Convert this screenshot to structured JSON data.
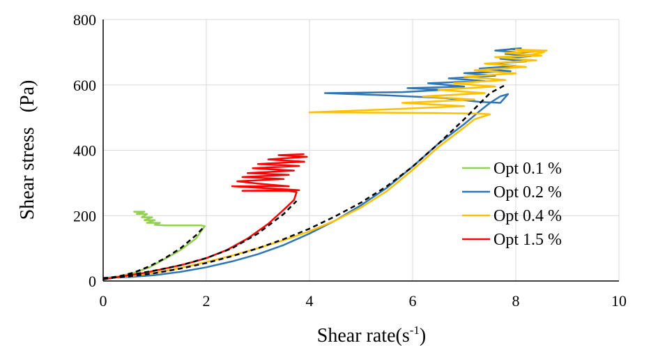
{
  "chart_data": {
    "type": "line",
    "xlabel": "Shear rate(s",
    "xlabel_sup": "-1",
    "xlabel_close": ")",
    "ylabel": "Shear stress   (Pa)",
    "xlim": [
      0,
      10
    ],
    "ylim": [
      0,
      800
    ],
    "xticks": [
      0,
      2,
      4,
      6,
      8,
      10
    ],
    "yticks": [
      0,
      200,
      400,
      600,
      800
    ],
    "grid": true,
    "legend_position": "right",
    "series": [
      {
        "name": "Opt 0.1 %",
        "color": "#92D050",
        "x": [
          0.0,
          0.3,
          0.6,
          0.9,
          1.2,
          1.5,
          1.8,
          1.97,
          1.9,
          1.6,
          1.2,
          1.0,
          1.1,
          0.85,
          1.0,
          0.8,
          0.95,
          0.75,
          0.85,
          0.65,
          0.8,
          0.6,
          0.75
        ],
        "y": [
          8,
          14,
          25,
          42,
          68,
          95,
          130,
          168,
          170,
          170,
          170,
          172,
          178,
          178,
          186,
          186,
          195,
          195,
          205,
          205,
          212,
          212,
          210
        ]
      },
      {
        "name": "Opt 0.2 %",
        "color": "#2E75B6",
        "x": [
          0.0,
          0.5,
          1.0,
          1.5,
          2.0,
          2.5,
          3.0,
          3.5,
          4.0,
          4.5,
          5.0,
          5.5,
          6.0,
          6.5,
          7.0,
          7.3,
          7.5,
          7.7,
          7.85,
          7.7,
          7.3,
          6.6,
          5.5,
          4.3,
          5.8,
          6.6,
          5.9,
          7.0,
          6.3,
          7.4,
          6.7,
          7.6,
          7.0,
          7.9,
          7.3,
          8.0,
          7.5,
          8.2,
          7.7,
          8.3,
          7.8,
          8.35,
          7.9,
          8.1,
          7.6,
          8.0
        ],
        "y": [
          10,
          12,
          18,
          28,
          42,
          60,
          82,
          110,
          145,
          185,
          232,
          285,
          350,
          420,
          480,
          520,
          545,
          565,
          572,
          545,
          548,
          560,
          568,
          575,
          578,
          585,
          590,
          595,
          605,
          612,
          620,
          628,
          636,
          642,
          650,
          658,
          665,
          672,
          680,
          688,
          695,
          702,
          710,
          712,
          705,
          700
        ]
      },
      {
        "name": "Opt 0.4 %",
        "color": "#FFC000",
        "x": [
          0.0,
          0.5,
          1.0,
          1.5,
          2.0,
          2.5,
          3.0,
          3.5,
          4.0,
          4.5,
          5.0,
          5.5,
          6.0,
          6.5,
          7.0,
          7.2,
          7.5,
          7.3,
          6.5,
          5.5,
          4.0,
          5.5,
          7.0,
          5.8,
          7.2,
          6.2,
          7.4,
          6.5,
          7.6,
          6.8,
          7.8,
          7.0,
          8.0,
          7.2,
          8.2,
          7.4,
          8.4,
          7.6,
          8.5,
          7.8,
          8.6,
          8.0,
          8.55,
          8.2
        ],
        "y": [
          8,
          14,
          25,
          40,
          58,
          78,
          100,
          125,
          152,
          185,
          225,
          275,
          340,
          410,
          470,
          495,
          510,
          512,
          514,
          515,
          516,
          525,
          535,
          545,
          555,
          565,
          575,
          585,
          595,
          605,
          615,
          625,
          635,
          645,
          655,
          665,
          675,
          685,
          690,
          698,
          705,
          708,
          700,
          690
        ]
      },
      {
        "name": "Opt 1.5 %",
        "color": "#FF0000",
        "x": [
          0.0,
          0.4,
          0.8,
          1.2,
          1.6,
          2.0,
          2.4,
          2.8,
          3.2,
          3.5,
          3.7,
          3.75,
          3.6,
          3.2,
          2.7,
          3.8,
          2.5,
          3.6,
          3.0,
          2.6,
          3.5,
          2.7,
          3.6,
          2.8,
          3.7,
          2.9,
          3.8,
          3.0,
          3.9,
          3.2,
          3.95,
          3.4,
          3.9
        ],
        "y": [
          5,
          15,
          25,
          38,
          52,
          70,
          95,
          130,
          175,
          218,
          248,
          272,
          276,
          276,
          276,
          278,
          290,
          290,
          298,
          305,
          312,
          318,
          325,
          330,
          338,
          345,
          352,
          358,
          365,
          372,
          380,
          385,
          388
        ]
      }
    ],
    "fits": [
      {
        "color": "#000000",
        "x": [
          0.0,
          0.3,
          0.6,
          0.9,
          1.2,
          1.5,
          1.8,
          1.95
        ],
        "y": [
          8,
          14,
          26,
          45,
          70,
          100,
          140,
          165
        ]
      },
      {
        "color": "#000000",
        "x": [
          0.0,
          0.5,
          1.0,
          1.5,
          2.0,
          2.5,
          3.0,
          3.5,
          3.75
        ],
        "y": [
          5,
          18,
          32,
          48,
          70,
          100,
          145,
          205,
          245
        ]
      },
      {
        "color": "#000000",
        "x": [
          0.0,
          0.5,
          1.0,
          1.5,
          2.0,
          2.5,
          3.0,
          3.5,
          4.0,
          4.5,
          5.0,
          5.5,
          6.0,
          6.5,
          7.0,
          7.5,
          7.8
        ],
        "y": [
          8,
          14,
          24,
          38,
          55,
          76,
          100,
          128,
          160,
          198,
          240,
          290,
          350,
          420,
          495,
          575,
          600
        ]
      }
    ]
  }
}
